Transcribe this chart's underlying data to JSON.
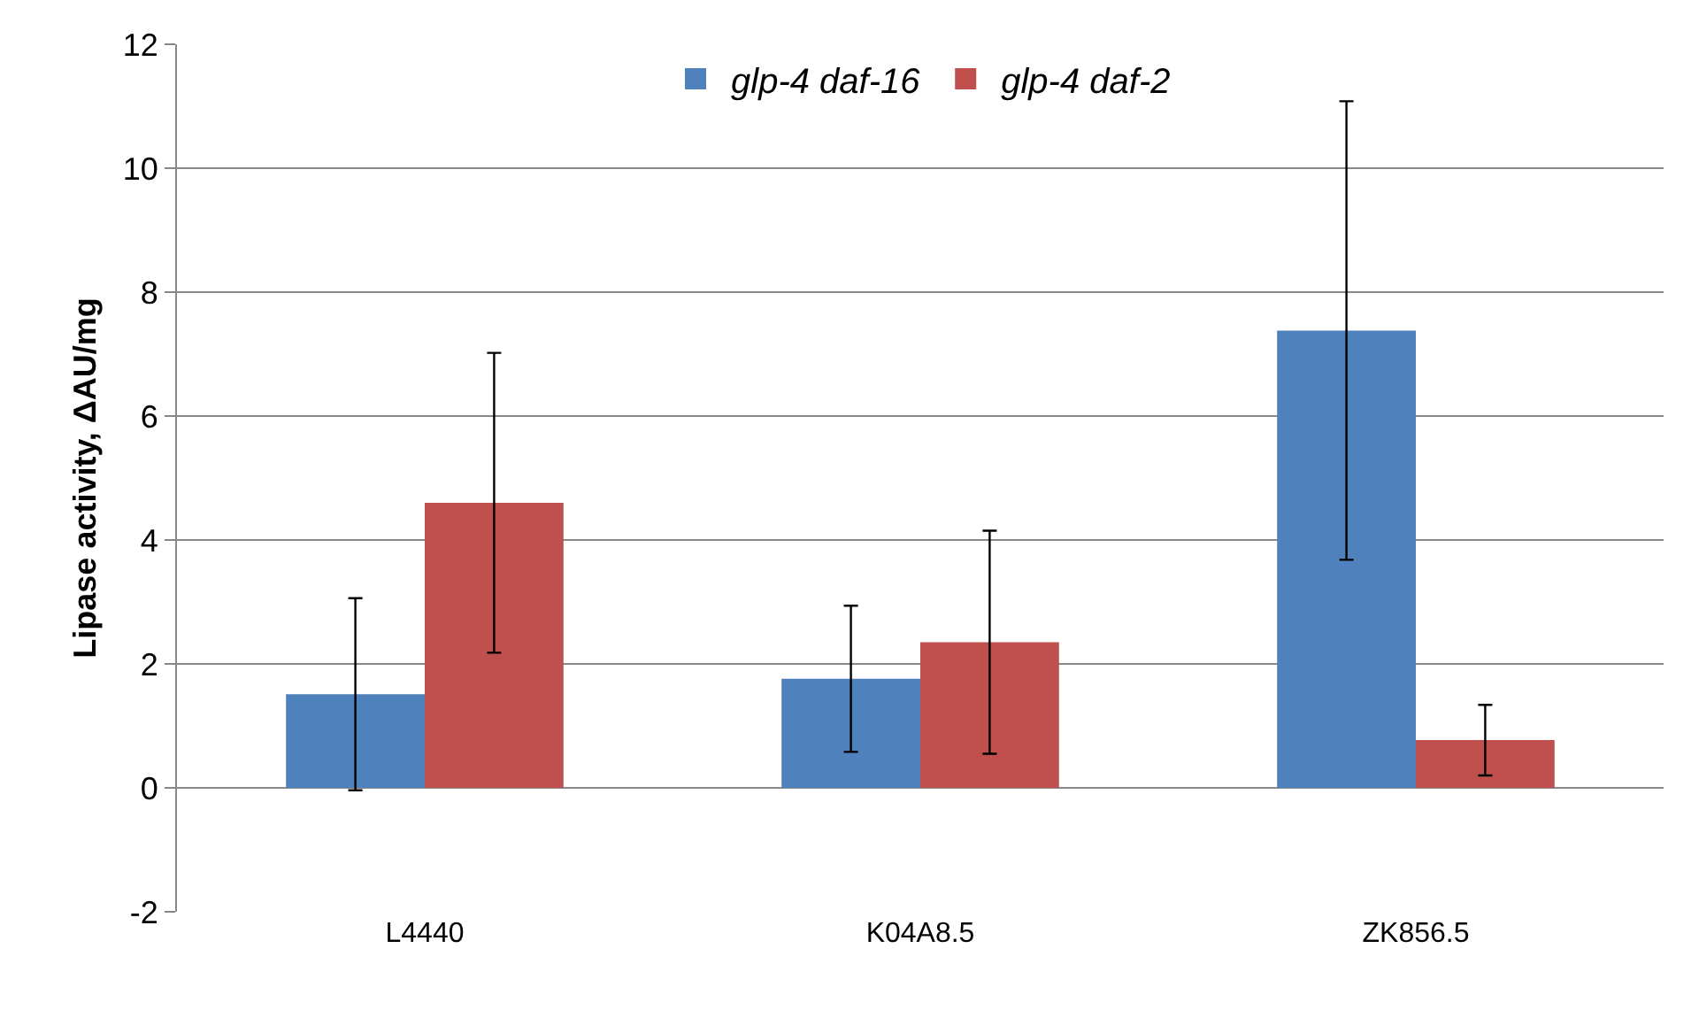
{
  "chart_data": {
    "type": "bar",
    "ylabel": "Lipase activity, ΔAU/mg",
    "categories": [
      "L4440",
      "K04A8.5",
      "ZK856.5"
    ],
    "series": [
      {
        "name": "glp-4 daf-16",
        "color": "#4f81bd",
        "values": [
          1.51,
          1.76,
          7.38
        ],
        "errors": [
          1.55,
          1.18,
          3.7
        ]
      },
      {
        "name": "glp-4 daf-2",
        "color": "#c0504d",
        "values": [
          4.6,
          2.35,
          0.77
        ],
        "errors": [
          2.42,
          1.8,
          0.57
        ]
      }
    ],
    "ylim": [
      -2,
      12
    ],
    "yticks": [
      -2,
      0,
      2,
      4,
      6,
      8,
      10,
      12
    ],
    "grid": "y",
    "legend": "top"
  }
}
